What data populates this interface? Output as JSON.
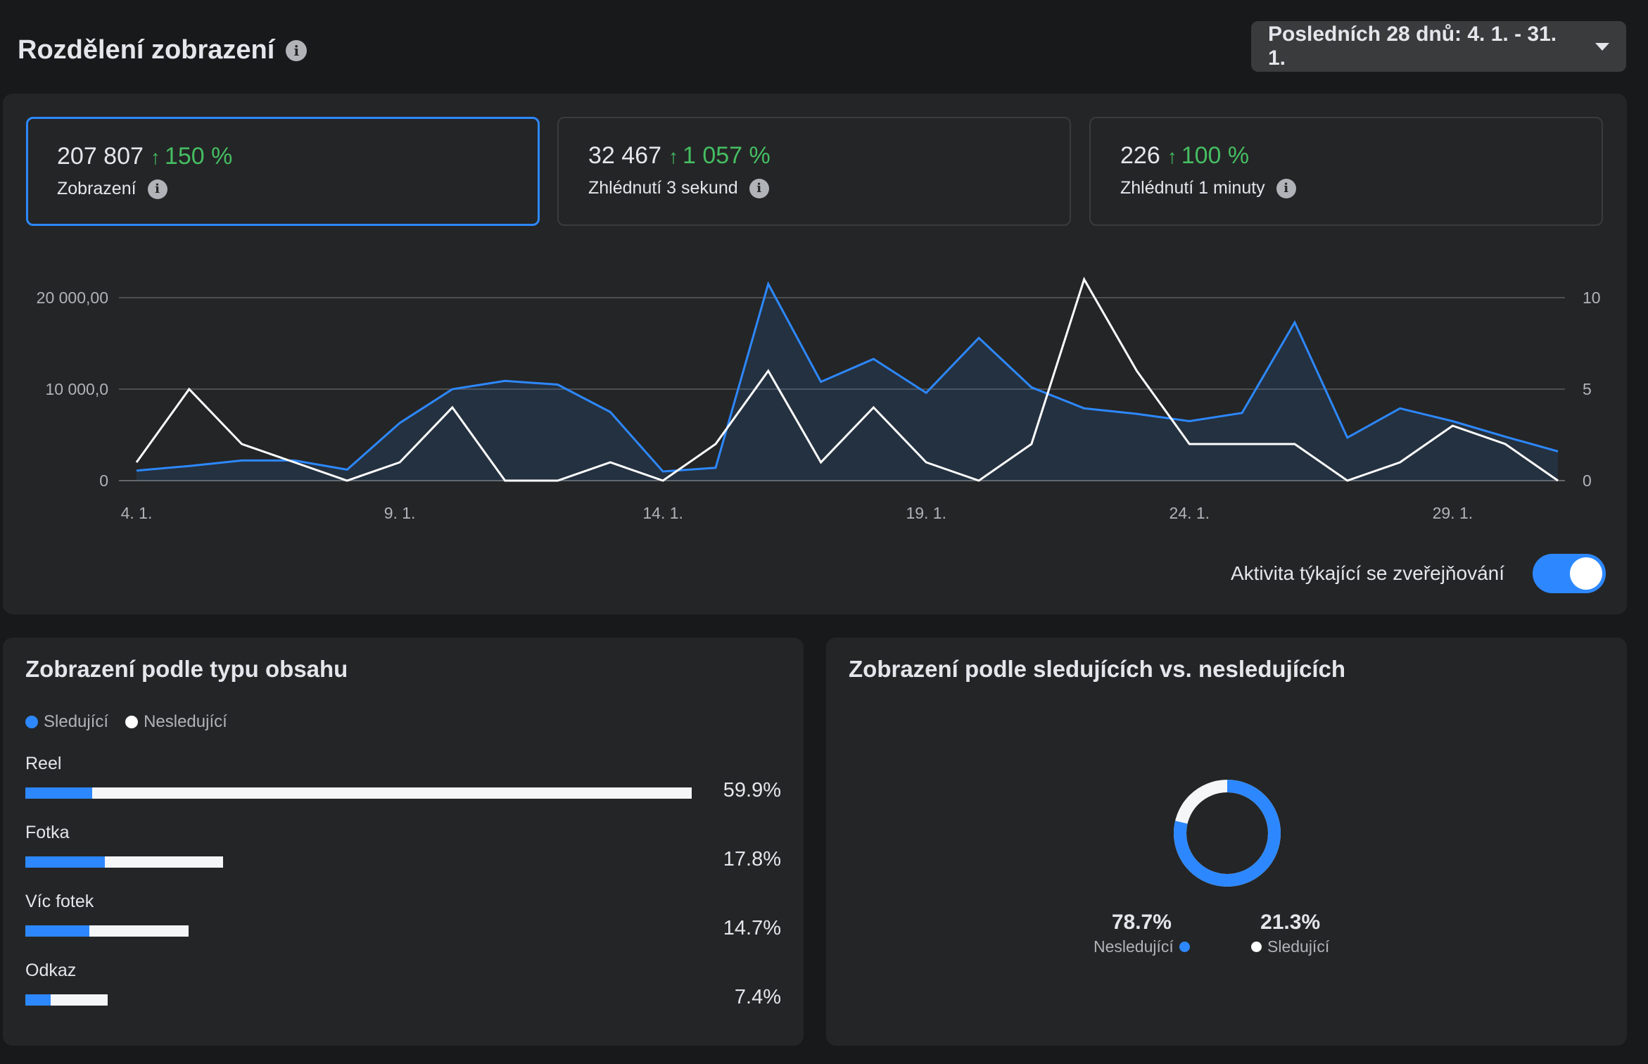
{
  "header": {
    "title": "Rozdělení zobrazení",
    "date_range": "Posledních 28 dnů: 4. 1. - 31. 1."
  },
  "metrics": [
    {
      "value": "207 807",
      "change": "150 %",
      "label": "Zobrazení"
    },
    {
      "value": "32 467",
      "change": "1 057 %",
      "label": "Zhlédnutí 3 sekund"
    },
    {
      "value": "226",
      "change": "100 %",
      "label": "Zhlédnutí 1 minuty"
    }
  ],
  "toggle": {
    "label": "Aktivita týkající se zveřejňování",
    "on": true
  },
  "colors": {
    "accent": "#2d88ff",
    "positive": "#45bd62",
    "secondary_series": "#ffffff"
  },
  "chart_data": {
    "type": "line",
    "categories": [
      "4. 1.",
      "5. 1.",
      "6. 1.",
      "7. 1.",
      "8. 1.",
      "9. 1.",
      "10. 1.",
      "11. 1.",
      "12. 1.",
      "13. 1.",
      "14. 1.",
      "15. 1.",
      "16. 1.",
      "17. 1.",
      "18. 1.",
      "19. 1.",
      "20. 1.",
      "21. 1.",
      "22. 1.",
      "23. 1.",
      "24. 1.",
      "25. 1.",
      "26. 1.",
      "27. 1.",
      "28. 1.",
      "29. 1.",
      "30. 1.",
      "31. 1."
    ],
    "x_tick_labels": [
      "4. 1.",
      "9. 1.",
      "14. 1.",
      "19. 1.",
      "24. 1.",
      "29. 1."
    ],
    "y_left_ticks": [
      "0",
      "10 000,0",
      "20 000,00"
    ],
    "y_right_ticks": [
      "0",
      "5",
      "10"
    ],
    "ylim_left": [
      0,
      20000
    ],
    "ylim_right": [
      0,
      10
    ],
    "grid": true,
    "series": [
      {
        "axis": "left",
        "values": [
          1100,
          1600,
          2200,
          2200,
          1200,
          6300,
          10000,
          10900,
          10500,
          7500,
          1000,
          1400,
          21500,
          10800,
          13300,
          9600,
          15600,
          10200,
          7900,
          7300,
          6500,
          7400,
          17300,
          4700,
          7900,
          6500,
          4800,
          3200
        ]
      },
      {
        "axis": "right",
        "values": [
          1,
          5,
          2,
          1,
          0,
          1,
          4,
          0,
          0,
          1,
          0,
          2,
          6,
          1,
          4,
          1,
          0,
          2,
          11,
          6,
          2,
          2,
          2,
          0,
          1,
          3,
          2,
          0
        ]
      }
    ]
  },
  "content_type": {
    "title": "Zobrazení podle typu obsahu",
    "legend": [
      "Sledující",
      "Nesledující"
    ],
    "bars": [
      {
        "label": "Reel",
        "pct": "59.9%",
        "total": 59.9,
        "followers_share": 0.1
      },
      {
        "label": "Fotka",
        "pct": "17.8%",
        "total": 17.8,
        "followers_share": 0.4
      },
      {
        "label": "Víc fotek",
        "pct": "14.7%",
        "total": 14.7,
        "followers_share": 0.39
      },
      {
        "label": "Odkaz",
        "pct": "7.4%",
        "total": 7.4,
        "followers_share": 0.31
      }
    ]
  },
  "followers": {
    "title": "Zobrazení podle sledujících vs. nesledujících",
    "non_followers": {
      "pct": "78.7%",
      "label": "Nesledující",
      "value": 78.7
    },
    "followers": {
      "pct": "21.3%",
      "label": "Sledující",
      "value": 21.3
    }
  }
}
